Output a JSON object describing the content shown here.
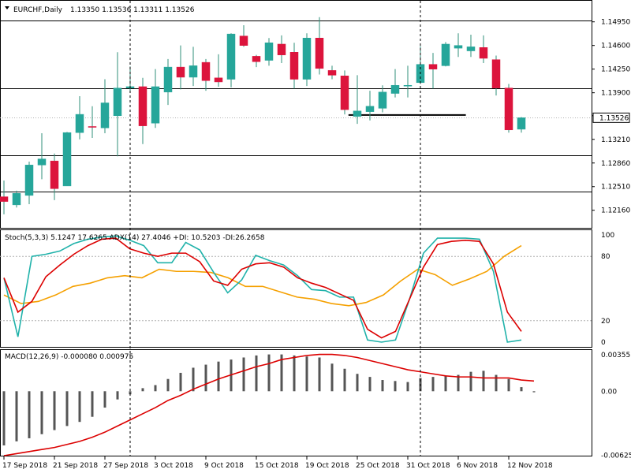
{
  "chart_data": {
    "type": "candlestick",
    "symbol_header": "EURCHF,Daily",
    "ohlc_header": "1.13350 1.13536 1.13311 1.13526",
    "current_price_label": "1.13526",
    "up_color": "#26a69a",
    "down_color": "#dc143c",
    "indicator_colors": {
      "stoch_main": "#20b2aa",
      "stoch_signal": "#dc0000",
      "adx": "#f5a000",
      "macd_hist": "#555555",
      "macd_signal": "#dc0000"
    },
    "price_axis": {
      "min": 1.119,
      "max": 1.1525,
      "ticks": [
        "1.14950",
        "1.14600",
        "1.14250",
        "1.13900",
        "1.13560",
        "1.13210",
        "1.12860",
        "1.12510",
        "1.12160"
      ]
    },
    "date_labels": [
      {
        "text": "17 Sep 2018",
        "index": 0
      },
      {
        "text": "21 Sep 2018",
        "index": 4
      },
      {
        "text": "27 Sep 2018",
        "index": 8
      },
      {
        "text": "3 Oct 2018",
        "index": 12
      },
      {
        "text": "9 Oct 2018",
        "index": 16
      },
      {
        "text": "15 Oct 2018",
        "index": 20
      },
      {
        "text": "19 Oct 2018",
        "index": 24
      },
      {
        "text": "25 Oct 2018",
        "index": 28
      },
      {
        "text": "31 Oct 2018",
        "index": 32
      },
      {
        "text": "6 Nov 2018",
        "index": 36
      },
      {
        "text": "12 Nov 2018",
        "index": 40
      }
    ],
    "candles": [
      {
        "o": 1.1236,
        "h": 1.126,
        "l": 1.121,
        "c": 1.1229
      },
      {
        "o": 1.1224,
        "h": 1.1245,
        "l": 1.122,
        "c": 1.1241
      },
      {
        "o": 1.1238,
        "h": 1.1288,
        "l": 1.1225,
        "c": 1.1283
      },
      {
        "o": 1.1283,
        "h": 1.133,
        "l": 1.1262,
        "c": 1.1292
      },
      {
        "o": 1.1289,
        "h": 1.13,
        "l": 1.1231,
        "c": 1.1248
      },
      {
        "o": 1.1252,
        "h": 1.1332,
        "l": 1.1252,
        "c": 1.1331
      },
      {
        "o": 1.1331,
        "h": 1.1385,
        "l": 1.1321,
        "c": 1.1358
      },
      {
        "o": 1.134,
        "h": 1.137,
        "l": 1.1323,
        "c": 1.1339
      },
      {
        "o": 1.1338,
        "h": 1.141,
        "l": 1.133,
        "c": 1.1375
      },
      {
        "o": 1.1356,
        "h": 1.145,
        "l": 1.1296,
        "c": 1.1397
      },
      {
        "o": 1.1397,
        "h": 1.1429,
        "l": 1.1392,
        "c": 1.1399
      },
      {
        "o": 1.1399,
        "h": 1.1412,
        "l": 1.1314,
        "c": 1.1341
      },
      {
        "o": 1.1345,
        "h": 1.1425,
        "l": 1.1338,
        "c": 1.1399
      },
      {
        "o": 1.1391,
        "h": 1.144,
        "l": 1.1372,
        "c": 1.1428
      },
      {
        "o": 1.1428,
        "h": 1.146,
        "l": 1.1395,
        "c": 1.1413
      },
      {
        "o": 1.1413,
        "h": 1.1458,
        "l": 1.14,
        "c": 1.143
      },
      {
        "o": 1.1435,
        "h": 1.144,
        "l": 1.1393,
        "c": 1.1408
      },
      {
        "o": 1.1412,
        "h": 1.1447,
        "l": 1.1399,
        "c": 1.1406
      },
      {
        "o": 1.141,
        "h": 1.1478,
        "l": 1.1398,
        "c": 1.1477
      },
      {
        "o": 1.1474,
        "h": 1.149,
        "l": 1.1458,
        "c": 1.146
      },
      {
        "o": 1.1444,
        "h": 1.1446,
        "l": 1.1428,
        "c": 1.1436
      },
      {
        "o": 1.1438,
        "h": 1.1471,
        "l": 1.143,
        "c": 1.1464
      },
      {
        "o": 1.1462,
        "h": 1.1475,
        "l": 1.1434,
        "c": 1.1446
      },
      {
        "o": 1.145,
        "h": 1.1464,
        "l": 1.1396,
        "c": 1.141
      },
      {
        "o": 1.141,
        "h": 1.1478,
        "l": 1.14,
        "c": 1.1471
      },
      {
        "o": 1.1471,
        "h": 1.1502,
        "l": 1.1417,
        "c": 1.1426
      },
      {
        "o": 1.1423,
        "h": 1.143,
        "l": 1.141,
        "c": 1.1416
      },
      {
        "o": 1.1415,
        "h": 1.1423,
        "l": 1.1358,
        "c": 1.1365
      },
      {
        "o": 1.1355,
        "h": 1.1416,
        "l": 1.1344,
        "c": 1.1363
      },
      {
        "o": 1.1362,
        "h": 1.1393,
        "l": 1.1349,
        "c": 1.137
      },
      {
        "o": 1.1367,
        "h": 1.1401,
        "l": 1.1361,
        "c": 1.1391
      },
      {
        "o": 1.1389,
        "h": 1.1425,
        "l": 1.1383,
        "c": 1.1401
      },
      {
        "o": 1.1401,
        "h": 1.143,
        "l": 1.1383,
        "c": 1.1401
      },
      {
        "o": 1.1405,
        "h": 1.1459,
        "l": 1.1403,
        "c": 1.1432
      },
      {
        "o": 1.1432,
        "h": 1.1449,
        "l": 1.1396,
        "c": 1.1425
      },
      {
        "o": 1.143,
        "h": 1.1465,
        "l": 1.1429,
        "c": 1.1462
      },
      {
        "o": 1.1456,
        "h": 1.1478,
        "l": 1.1443,
        "c": 1.146
      },
      {
        "o": 1.1452,
        "h": 1.1476,
        "l": 1.1443,
        "c": 1.1458
      },
      {
        "o": 1.1457,
        "h": 1.1475,
        "l": 1.1434,
        "c": 1.1441
      },
      {
        "o": 1.1439,
        "h": 1.1445,
        "l": 1.1386,
        "c": 1.1397
      },
      {
        "o": 1.1397,
        "h": 1.1403,
        "l": 1.1331,
        "c": 1.1335
      },
      {
        "o": 1.1336,
        "h": 1.1354,
        "l": 1.1331,
        "c": 1.1353
      }
    ],
    "horizontal_levels": [
      1.1497,
      1.1397,
      1.1297,
      1.1244
    ],
    "support_segment": {
      "price": 1.1357,
      "from_index": 27.3,
      "to_index": 36.6
    },
    "vertical_markers": [
      10,
      33
    ],
    "stochastic": {
      "label": "Stoch(5,3,3) 5.1247 17.6265  ADX(14) 27.4046 +DI: 10.5203 -DI:26.2658",
      "ylim": [
        0,
        100
      ],
      "ticks": [
        "100",
        "80",
        "20",
        "0"
      ],
      "k": [
        60,
        5,
        80,
        82,
        85,
        92,
        96,
        98,
        99,
        95,
        90,
        74,
        74,
        93,
        86,
        65,
        46,
        58,
        81,
        76,
        72,
        62,
        49,
        48,
        42,
        42,
        2,
        0,
        2,
        40,
        83,
        97,
        97,
        97,
        96,
        66,
        0,
        2
      ],
      "d": [
        60,
        28,
        38,
        61,
        72,
        82,
        90,
        96,
        97,
        87,
        83,
        80,
        83,
        83,
        75,
        57,
        53,
        68,
        73,
        74,
        70,
        60,
        55,
        51,
        45,
        39,
        12,
        4,
        10,
        40,
        70,
        91,
        94,
        95,
        94,
        73,
        28,
        10
      ],
      "adx": [
        44,
        36,
        38,
        44,
        52,
        55,
        60,
        62,
        60,
        68,
        66,
        66,
        65,
        60,
        52,
        52,
        47,
        42,
        40,
        36,
        34,
        37,
        44,
        57,
        68,
        63,
        53,
        59,
        66,
        80,
        90
      ],
      "adx_start_index": 0,
      "series_start_index": 0
    },
    "macd": {
      "label": "MACD(12,26,9) -0.000080 0.000975",
      "ylim": [
        -0.0063,
        0.0038
      ],
      "ticks": [
        "0.003557",
        "0.00",
        "-0.006256"
      ],
      "hist": [
        -0.0053,
        -0.0049,
        -0.0046,
        -0.0042,
        -0.0038,
        -0.0034,
        -0.003,
        -0.0025,
        -0.0016,
        -0.0008,
        -0.0003,
        0.0003,
        0.0006,
        0.0012,
        0.0018,
        0.0023,
        0.0026,
        0.0029,
        0.0031,
        0.0033,
        0.0035,
        0.0036,
        0.0036,
        0.0035,
        0.0034,
        0.0033,
        0.0027,
        0.0022,
        0.0017,
        0.0014,
        0.0011,
        0.001,
        0.0009,
        0.0013,
        0.0014,
        0.0015,
        0.0016,
        0.0019,
        0.002,
        0.0016,
        0.0012,
        0.0004,
        -0.0001
      ],
      "signal": [
        -0.0063,
        -0.0061,
        -0.0059,
        -0.0057,
        -0.0055,
        -0.0052,
        -0.0049,
        -0.0045,
        -0.004,
        -0.0034,
        -0.0028,
        -0.0022,
        -0.0016,
        -0.0009,
        -0.0004,
        0.0002,
        0.0007,
        0.0012,
        0.0016,
        0.002,
        0.0024,
        0.0027,
        0.0031,
        0.0033,
        0.0035,
        0.0036,
        0.0036,
        0.0035,
        0.0033,
        0.003,
        0.0027,
        0.0024,
        0.0021,
        0.0019,
        0.0017,
        0.0015,
        0.0014,
        0.0014,
        0.0013,
        0.0013,
        0.0013,
        0.0011,
        0.001
      ]
    }
  }
}
